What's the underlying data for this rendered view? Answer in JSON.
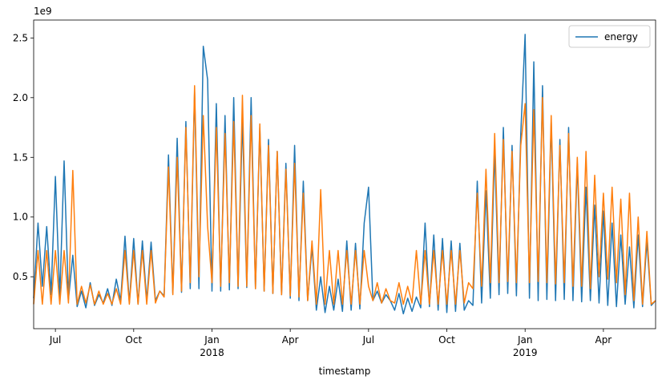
{
  "chart_data": {
    "type": "line",
    "y_offset_label": "1e9",
    "xlabel": "timestamp",
    "legend": "upper right",
    "grid": false,
    "categories": [
      null,
      null,
      null,
      null,
      null,
      "Jul",
      null,
      null,
      null,
      null,
      null,
      null,
      null,
      null,
      null,
      null,
      null,
      null,
      null,
      null,
      null,
      null,
      null,
      "Oct",
      null,
      null,
      null,
      null,
      null,
      null,
      null,
      null,
      null,
      null,
      null,
      null,
      null,
      null,
      null,
      null,
      null,
      "Jan\n2018",
      null,
      null,
      null,
      null,
      null,
      null,
      null,
      null,
      null,
      null,
      null,
      null,
      null,
      null,
      null,
      null,
      null,
      "Apr",
      null,
      null,
      null,
      null,
      null,
      null,
      null,
      null,
      null,
      null,
      null,
      null,
      null,
      null,
      null,
      null,
      null,
      "Jul",
      null,
      null,
      null,
      null,
      null,
      null,
      null,
      null,
      null,
      null,
      null,
      null,
      null,
      null,
      null,
      null,
      null,
      "Oct",
      null,
      null,
      null,
      null,
      null,
      null,
      null,
      null,
      null,
      null,
      null,
      null,
      null,
      null,
      null,
      null,
      null,
      "Jan\n2019",
      null,
      null,
      null,
      null,
      null,
      null,
      null,
      null,
      null,
      null,
      null,
      null,
      null,
      null,
      null,
      null,
      null,
      "Apr",
      null,
      null,
      null,
      null,
      null,
      null,
      null,
      null,
      null,
      null,
      null,
      null
    ],
    "series": [
      {
        "name": "energy",
        "color": "#1f77b4",
        "values": [
          0.32,
          0.95,
          0.42,
          0.92,
          0.35,
          1.34,
          0.33,
          1.47,
          0.31,
          0.68,
          0.25,
          0.38,
          0.24,
          0.45,
          0.26,
          0.35,
          0.28,
          0.4,
          0.26,
          0.48,
          0.3,
          0.84,
          0.28,
          0.82,
          0.27,
          0.8,
          0.3,
          0.79,
          0.3,
          0.38,
          0.34,
          1.52,
          0.36,
          1.66,
          0.37,
          1.8,
          0.4,
          2.05,
          0.4,
          2.43,
          2.15,
          0.38,
          1.95,
          0.38,
          1.85,
          0.39,
          2.0,
          0.4,
          1.82,
          0.41,
          2.0,
          0.4,
          1.75,
          0.38,
          1.65,
          0.36,
          1.55,
          0.35,
          1.45,
          0.32,
          1.6,
          0.3,
          1.3,
          0.3,
          0.75,
          0.22,
          0.5,
          0.2,
          0.42,
          0.22,
          0.48,
          0.21,
          0.8,
          0.22,
          0.78,
          0.23,
          0.95,
          1.25,
          0.3,
          0.38,
          0.28,
          0.35,
          0.3,
          0.22,
          0.36,
          0.19,
          0.32,
          0.21,
          0.33,
          0.24,
          0.95,
          0.25,
          0.85,
          0.22,
          0.82,
          0.2,
          0.8,
          0.21,
          0.78,
          0.22,
          0.3,
          0.26,
          1.3,
          0.28,
          1.22,
          0.32,
          1.55,
          0.35,
          1.75,
          0.36,
          1.6,
          0.34,
          1.7,
          2.53,
          0.32,
          2.3,
          0.3,
          2.1,
          0.31,
          1.8,
          0.3,
          1.65,
          0.31,
          1.75,
          0.3,
          1.45,
          0.29,
          1.25,
          0.3,
          1.1,
          0.28,
          1.05,
          0.26,
          0.95,
          0.25,
          0.85,
          0.27,
          0.75,
          0.24,
          0.85,
          0.25,
          0.8,
          0.26,
          0.3
        ]
      },
      {
        "color": "#ff7f0e",
        "values": [
          0.27,
          0.72,
          0.27,
          0.72,
          0.27,
          0.72,
          0.27,
          0.72,
          0.28,
          1.39,
          0.27,
          0.42,
          0.28,
          0.43,
          0.27,
          0.38,
          0.27,
          0.36,
          0.27,
          0.4,
          0.27,
          0.72,
          0.27,
          0.72,
          0.27,
          0.72,
          0.27,
          0.72,
          0.28,
          0.38,
          0.33,
          1.42,
          0.35,
          1.5,
          0.38,
          1.75,
          0.45,
          2.1,
          0.5,
          1.85,
          0.92,
          0.45,
          1.75,
          0.42,
          1.7,
          0.45,
          1.8,
          0.42,
          2.02,
          0.42,
          1.85,
          0.4,
          1.78,
          0.38,
          1.6,
          0.36,
          1.55,
          0.35,
          1.4,
          0.34,
          1.45,
          0.33,
          1.2,
          0.3,
          0.8,
          0.27,
          1.23,
          0.27,
          0.72,
          0.27,
          0.72,
          0.27,
          0.72,
          0.27,
          0.72,
          0.27,
          0.72,
          0.42,
          0.3,
          0.45,
          0.28,
          0.4,
          0.3,
          0.28,
          0.45,
          0.27,
          0.42,
          0.28,
          0.72,
          0.27,
          0.72,
          0.27,
          0.72,
          0.27,
          0.72,
          0.27,
          0.72,
          0.27,
          0.72,
          0.28,
          0.45,
          0.4,
          1.2,
          0.42,
          1.4,
          0.45,
          1.7,
          0.45,
          1.65,
          0.46,
          1.55,
          0.45,
          1.6,
          1.95,
          0.45,
          1.9,
          0.46,
          2.0,
          0.45,
          1.85,
          0.44,
          1.6,
          0.45,
          1.7,
          0.42,
          1.5,
          0.42,
          1.55,
          0.4,
          1.35,
          0.5,
          1.2,
          0.48,
          1.25,
          0.45,
          1.15,
          0.35,
          1.2,
          0.3,
          1.0,
          0.27,
          0.88,
          0.27,
          0.3
        ]
      }
    ],
    "ylim": [
      0.065,
      2.65
    ],
    "yticks": [
      0.5,
      {
        "value": 1,
        "label": "1.0"
      },
      1.5,
      {
        "value": 2,
        "label": "2.0"
      },
      2.5
    ]
  }
}
